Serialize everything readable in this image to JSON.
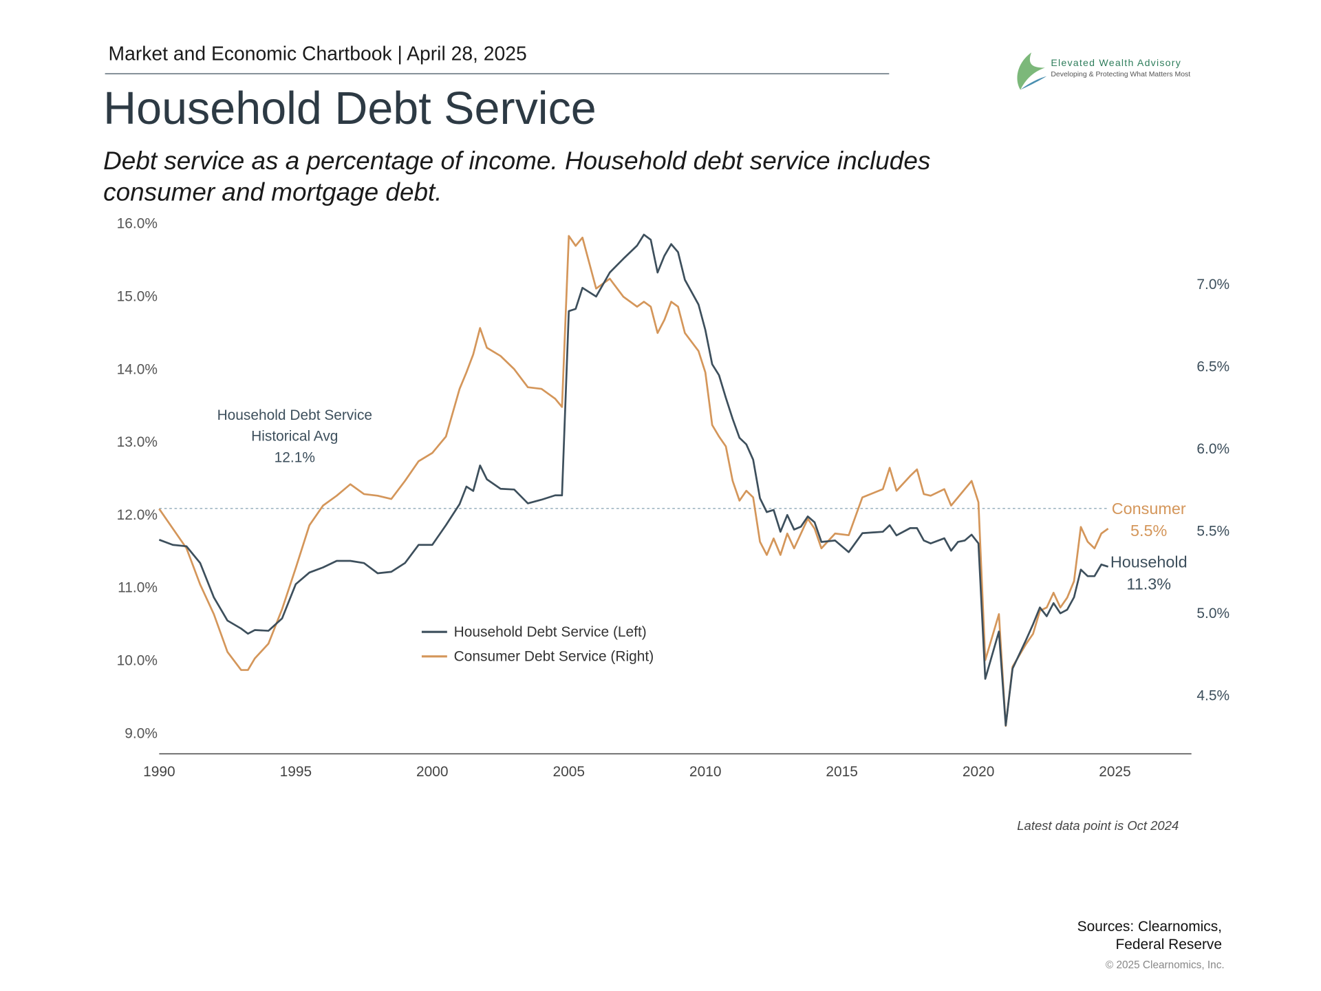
{
  "header": "Market and Economic Chartbook | April 28, 2025",
  "logo": {
    "name": "Elevated Wealth Advisory",
    "tagline": "Developing & Protecting What Matters Most"
  },
  "chart_data": {
    "type": "line",
    "title": "Household Debt Service",
    "subtitle": [
      "Debt service as a percentage of income. Household debt service includes",
      "consumer and mortgage debt."
    ],
    "x": [
      1990,
      1990.5,
      1991,
      1991.5,
      1992,
      1992.5,
      1993,
      1993.25,
      1993.5,
      1994,
      1994.5,
      1995,
      1995.5,
      1996,
      1996.5,
      1997,
      1997.5,
      1998,
      1998.5,
      1999,
      1999.5,
      2000,
      2000.5,
      2001,
      2001.25,
      2001.5,
      2001.75,
      2002,
      2002.5,
      2003,
      2003.5,
      2004,
      2004.5,
      2004.75,
      2005,
      2005.25,
      2005.5,
      2006,
      2006.5,
      2007,
      2007.5,
      2007.75,
      2008,
      2008.25,
      2008.5,
      2008.75,
      2009,
      2009.25,
      2009.75,
      2010,
      2010.25,
      2010.5,
      2010.75,
      2011,
      2011.25,
      2011.5,
      2011.75,
      2012,
      2012.25,
      2012.5,
      2012.75,
      2013,
      2013.25,
      2013.5,
      2013.75,
      2014,
      2014.25,
      2014.75,
      2015.25,
      2015.75,
      2016.5,
      2016.75,
      2017,
      2017.5,
      2017.75,
      2018,
      2018.25,
      2018.75,
      2019,
      2019.25,
      2019.5,
      2019.75,
      2020,
      2020.25,
      2020.75,
      2021,
      2021.25,
      2021.75,
      2022,
      2022.25,
      2022.5,
      2022.75,
      2023,
      2023.25,
      2023.5,
      2023.75,
      2024,
      2024.25,
      2024.5,
      2024.75
    ],
    "series": [
      {
        "name": "Household Debt Service (Left)",
        "color": "#3d4f5c",
        "axis": "y",
        "end_name": "Household",
        "end_value_label": "11.3%",
        "values": [
          11.67,
          11.6,
          11.58,
          11.35,
          10.88,
          10.56,
          10.45,
          10.38,
          10.43,
          10.42,
          10.59,
          11.06,
          11.22,
          11.29,
          11.38,
          11.38,
          11.35,
          11.21,
          11.23,
          11.35,
          11.6,
          11.6,
          11.87,
          12.16,
          12.4,
          12.34,
          12.69,
          12.5,
          12.37,
          12.36,
          12.17,
          12.22,
          12.28,
          12.28,
          14.81,
          14.84,
          15.13,
          15.01,
          15.34,
          15.53,
          15.71,
          15.86,
          15.79,
          15.34,
          15.57,
          15.73,
          15.62,
          15.24,
          14.9,
          14.55,
          14.08,
          13.93,
          13.62,
          13.33,
          13.07,
          12.98,
          12.77,
          12.24,
          12.05,
          12.08,
          11.78,
          12.01,
          11.81,
          11.85,
          11.99,
          11.91,
          11.64,
          11.66,
          11.5,
          11.76,
          11.78,
          11.87,
          11.73,
          11.83,
          11.83,
          11.66,
          11.62,
          11.69,
          11.52,
          11.64,
          11.66,
          11.74,
          11.62,
          9.76,
          10.41,
          9.12,
          9.9,
          10.3,
          10.51,
          10.74,
          10.62,
          10.8,
          10.66,
          10.71,
          10.88,
          11.26,
          11.17,
          11.17,
          11.33,
          11.3
        ]
      },
      {
        "name": "Consumer Debt Service (Right)",
        "color": "#d4965a",
        "axis": "y2",
        "end_name": "Consumer",
        "end_value_label": "5.5%",
        "values": [
          5.64,
          5.52,
          5.4,
          5.18,
          5.0,
          4.77,
          4.66,
          4.66,
          4.73,
          4.82,
          5.03,
          5.28,
          5.54,
          5.66,
          5.72,
          5.79,
          5.73,
          5.72,
          5.7,
          5.81,
          5.93,
          5.98,
          6.08,
          6.37,
          6.47,
          6.58,
          6.74,
          6.62,
          6.57,
          6.49,
          6.38,
          6.37,
          6.31,
          6.26,
          7.3,
          7.24,
          7.29,
          6.98,
          7.04,
          6.93,
          6.87,
          6.9,
          6.87,
          6.71,
          6.79,
          6.9,
          6.87,
          6.71,
          6.6,
          6.47,
          6.15,
          6.08,
          6.02,
          5.81,
          5.69,
          5.75,
          5.71,
          5.44,
          5.36,
          5.46,
          5.36,
          5.49,
          5.4,
          5.49,
          5.58,
          5.52,
          5.4,
          5.49,
          5.48,
          5.71,
          5.76,
          5.89,
          5.75,
          5.84,
          5.88,
          5.73,
          5.72,
          5.76,
          5.66,
          5.71,
          5.76,
          5.81,
          5.68,
          4.72,
          5.0,
          4.32,
          4.68,
          4.82,
          4.88,
          5.02,
          5.04,
          5.13,
          5.04,
          5.1,
          5.2,
          5.53,
          5.44,
          5.4,
          5.49,
          5.52
        ]
      }
    ],
    "xlim": [
      1990,
      2027.8
    ],
    "xticks": [
      1990,
      1995,
      2000,
      2005,
      2010,
      2015,
      2020,
      2025
    ],
    "ylim": [
      8.73,
      16.0
    ],
    "yticks": [
      {
        "value": 9,
        "label": "9.0%"
      },
      {
        "value": 10,
        "label": "10.0%"
      },
      {
        "value": 11,
        "label": "11.0%"
      },
      {
        "value": 12,
        "label": "12.0%"
      },
      {
        "value": 13,
        "label": "13.0%"
      },
      {
        "value": 14,
        "label": "14.0%"
      },
      {
        "value": 15,
        "label": "15.0%"
      },
      {
        "value": 16,
        "label": "16.0%"
      }
    ],
    "y2lim": [
      4.15,
      7.37
    ],
    "y2ticks": [
      {
        "value": 4.5,
        "label": "4.5%"
      },
      {
        "value": 5,
        "label": "5.0%"
      },
      {
        "value": 5.5,
        "label": "5.5%"
      },
      {
        "value": 6,
        "label": "6.0%"
      },
      {
        "value": 6.5,
        "label": "6.5%"
      },
      {
        "value": 7,
        "label": "7.0%"
      }
    ],
    "grid": false,
    "reference_line": {
      "value": 12.1,
      "label": "12.1%",
      "text": [
        "Household Debt Service",
        "Historical Avg"
      ],
      "color": "#8fa9b8"
    },
    "note": "Latest data point is Oct 2024"
  },
  "footer": {
    "sources": [
      "Sources: Clearnomics,",
      "Federal Reserve"
    ],
    "copyright": "© 2025 Clearnomics, Inc."
  }
}
